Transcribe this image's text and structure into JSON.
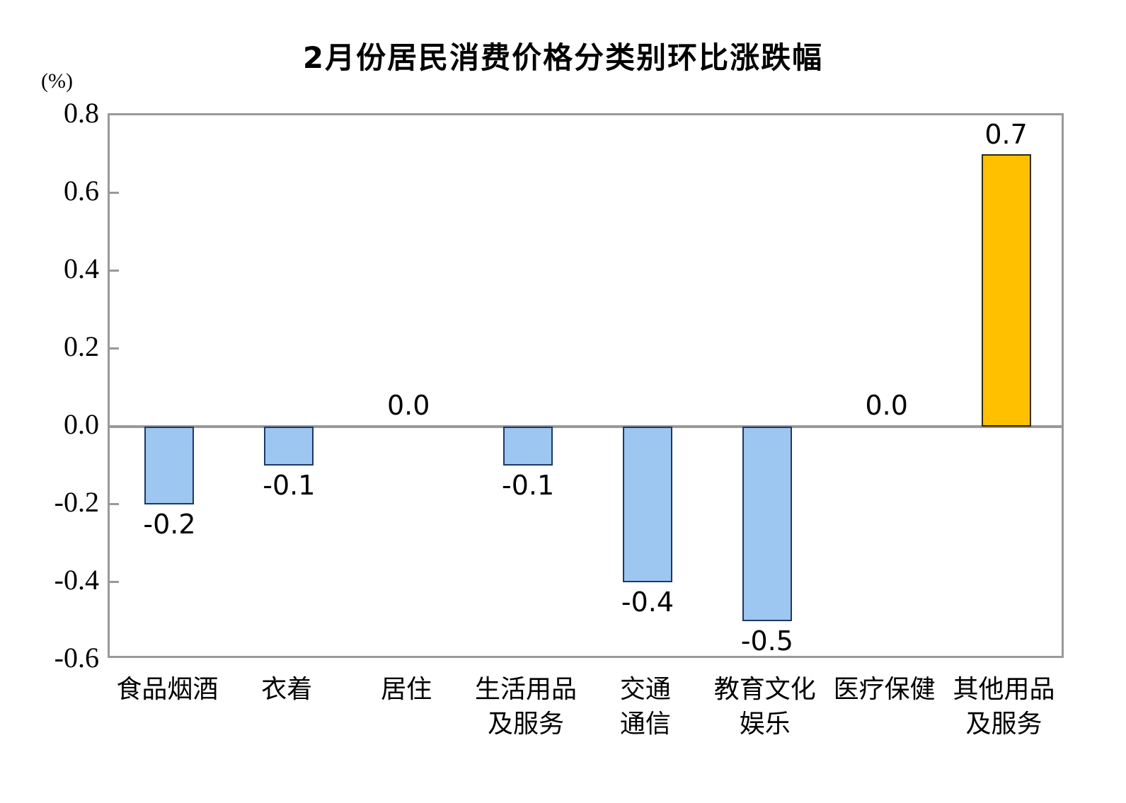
{
  "chart_data": {
    "type": "bar",
    "title": "2月份居民消费价格分类别环比涨跌幅",
    "unit_label": "(%)",
    "categories": [
      [
        "食品烟酒"
      ],
      [
        "衣着"
      ],
      [
        "居住"
      ],
      [
        "生活用品",
        "及服务"
      ],
      [
        "交通",
        "通信"
      ],
      [
        "教育文化",
        "娱乐"
      ],
      [
        "医疗保健"
      ],
      [
        "其他用品",
        "及服务"
      ]
    ],
    "values": [
      -0.2,
      -0.1,
      0.0,
      -0.1,
      -0.4,
      -0.5,
      0.0,
      0.7
    ],
    "value_labels": [
      "-0.2",
      "-0.1",
      "0.0",
      "-0.1",
      "-0.4",
      "-0.5",
      "0.0",
      "0.7"
    ],
    "ylim": [
      -0.6,
      0.8
    ],
    "ytick_step": 0.2,
    "yticks": [
      "0.8",
      "0.6",
      "0.4",
      "0.2",
      "0.0",
      "-0.2",
      "-0.4",
      "-0.6"
    ],
    "grid": false,
    "legend": "none",
    "colors": {
      "bar_fill_default": "#9DC7F0",
      "bar_border_default": "#1F3864",
      "bar_fill_positive": "#FFC000",
      "bar_border_positive": "#332A00",
      "axis": "#999999",
      "text": "#000000"
    }
  }
}
